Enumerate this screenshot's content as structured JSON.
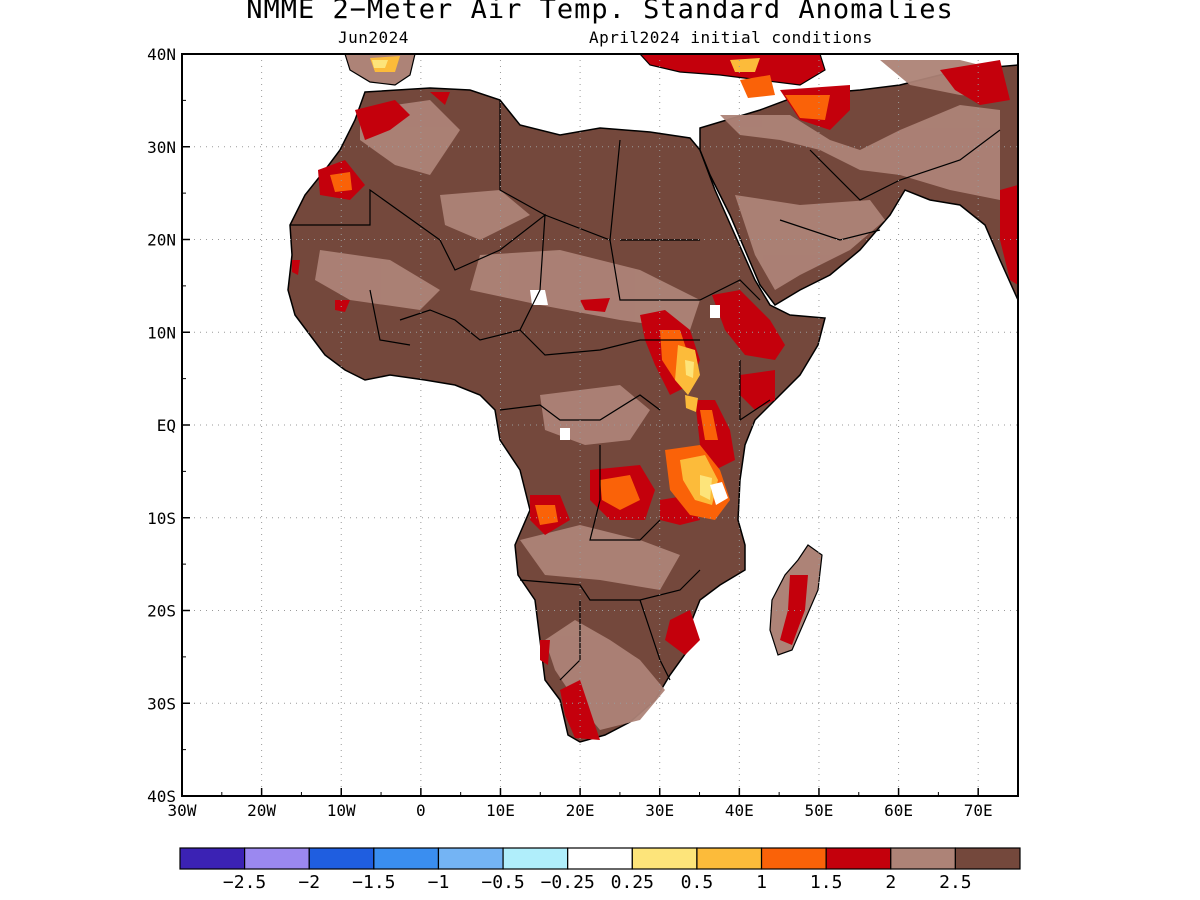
{
  "title": "NMME 2−Meter Air Temp. Standard Anomalies",
  "valid_month": "Jun2024",
  "initial_conditions": "April2024 initial conditions",
  "map": {
    "lon_range": [
      -30,
      75
    ],
    "lat_range": [
      -40,
      40
    ],
    "lon_ticks": [
      "30W",
      "20W",
      "10W",
      "0",
      "10E",
      "20E",
      "30E",
      "40E",
      "50E",
      "60E",
      "70E"
    ],
    "lat_ticks": [
      "40N",
      "30N",
      "20N",
      "10N",
      "EQ",
      "10S",
      "20S",
      "30S",
      "40S"
    ],
    "gridlines": "dotted"
  },
  "colorbar": {
    "colors": [
      "#3b22b4",
      "#9b88f0",
      "#1f5ee0",
      "#3a8ef0",
      "#74b4f4",
      "#b0eefb",
      "#ffffff",
      "#fde47a",
      "#fcbb3a",
      "#fa6208",
      "#c4000c",
      "#ad8377",
      "#74483c"
    ],
    "labels": [
      "−2.5",
      "−2",
      "−1.5",
      "−1",
      "−0.5",
      "−0.25",
      "0.25",
      "0.5",
      "1",
      "1.5",
      "2",
      "2.5"
    ]
  },
  "hotspots": [
    {
      "name": "east-africa",
      "level": "1 to 2+"
    },
    {
      "name": "central-africa-south",
      "level": "1.5 to 2"
    },
    {
      "name": "arabian-peninsula-north",
      "level": "1 to 2"
    },
    {
      "name": "northwest-africa-coast",
      "level": "1 to 2"
    },
    {
      "name": "madagascar-west",
      "level": "2"
    },
    {
      "name": "southern-africa-southwest",
      "level": "2"
    }
  ]
}
